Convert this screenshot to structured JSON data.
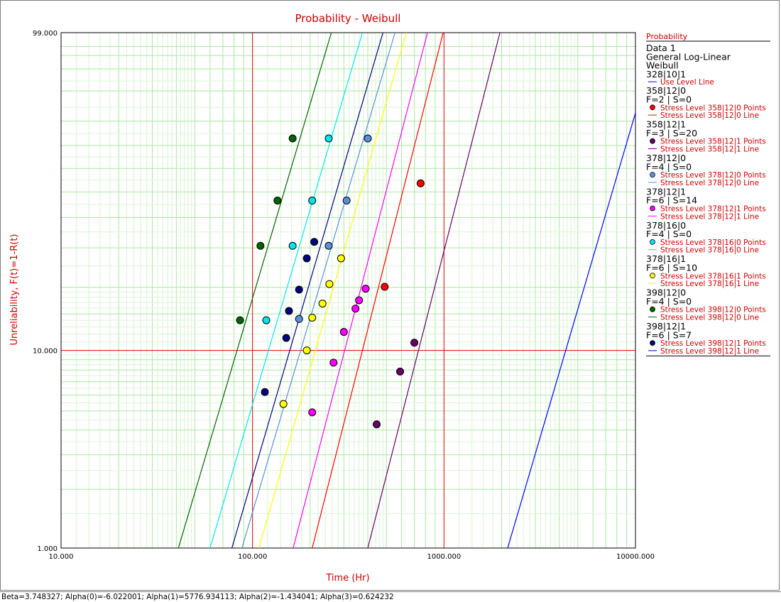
{
  "chart_data": {
    "type": "scatter",
    "title": "Probability - Weibull",
    "xlabel": "Time (Hr)",
    "ylabel": "Unreliability, F(t)=1-R(t)",
    "x_scale": "log",
    "y_scale": "weibull",
    "xlim": [
      10,
      10000
    ],
    "ylim": [
      1,
      99
    ],
    "x_ticks": [
      "10.000",
      "100.000",
      "1000.000",
      "10000.000"
    ],
    "y_ticks": [
      "1.000",
      "10.000",
      "99.000"
    ],
    "grid": true,
    "legend_position": "right",
    "reference_lines": {
      "x": 100,
      "y": 10
    },
    "legend": {
      "title": "Probability",
      "header": [
        "Data 1",
        "General Log-Linear",
        "Weibull",
        "328|10|1"
      ],
      "use_level_label": "Use Level Line",
      "groups": [
        {
          "name": "358|12|0",
          "counts": "F=2 | S=0",
          "points_label": "Stress Level 358|12|0 Points",
          "line_label": "Stress Level 358|12|0 Line",
          "color": "#ff0000"
        },
        {
          "name": "358|12|1",
          "counts": "F=3 | S=20",
          "points_label": "Stress Level 358|12|1 Points",
          "line_label": "Stress Level 358|12|1 Line",
          "color": "#660066"
        },
        {
          "name": "378|12|0",
          "counts": "F=4 | S=0",
          "points_label": "Stress Level 378|12|0 Points",
          "line_label": "Stress Level 378|12|0 Line",
          "color": "#5b8fd9"
        },
        {
          "name": "378|12|1",
          "counts": "F=6 | S=14",
          "points_label": "Stress Level 378|12|1 Points",
          "line_label": "Stress Level 378|12|1 Line",
          "color": "#ff00ff"
        },
        {
          "name": "378|16|0",
          "counts": "F=4 | S=0",
          "points_label": "Stress Level 378|16|0 Points",
          "line_label": "Stress Level 378|16|0 Line",
          "color": "#00e5ee"
        },
        {
          "name": "378|16|1",
          "counts": "F=6 | S=10",
          "points_label": "Stress Level 378|16|1 Points",
          "line_label": "Stress Level 378|16|1 Line",
          "color": "#ffff00"
        },
        {
          "name": "398|12|0",
          "counts": "F=4 | S=0",
          "points_label": "Stress Level 398|12|0 Points",
          "line_label": "Stress Level 398|12|0 Line",
          "color": "#006400"
        },
        {
          "name": "398|12|1",
          "counts": "F=6 | S=7",
          "points_label": "Stress Level 398|12|1 Points",
          "line_label": "Stress Level 398|12|1 Line",
          "color": "#000080"
        }
      ]
    },
    "use_level_line": {
      "color": "#0000ff",
      "x1": 2150,
      "x2": 10000,
      "y_at_x1": 1.0,
      "y_at_x2": 83.0
    },
    "series": [
      {
        "points": [
          [
            490,
            20.1
          ],
          [
            755,
            53.6
          ]
        ],
        "line": {
          "x1": 205,
          "x2": 990,
          "y_at_x1": 1.0,
          "y_at_x2": 99.0
        }
      },
      {
        "points": [
          [
            445,
            4.28
          ],
          [
            590,
            7.87
          ],
          [
            700,
            10.9
          ]
        ],
        "line": {
          "x1": 400,
          "x2": 1960,
          "y_at_x1": 1.0,
          "y_at_x2": 99.0
        }
      },
      {
        "points": [
          [
            175,
            14.2
          ],
          [
            250,
            30.6
          ],
          [
            310,
            46.5
          ],
          [
            400,
            73.0
          ]
        ],
        "line": {
          "x1": 88,
          "x2": 555,
          "y_at_x1": 1.0,
          "y_at_x2": 99.0
        }
      },
      {
        "points": [
          [
            205,
            4.92
          ],
          [
            265,
            8.7
          ],
          [
            300,
            12.3
          ],
          [
            345,
            15.9
          ],
          [
            360,
            17.4
          ],
          [
            390,
            19.7
          ]
        ],
        "line": {
          "x1": 163,
          "x2": 820,
          "y_at_x1": 1.0,
          "y_at_x2": 99.0
        }
      },
      {
        "points": [
          [
            118,
            14.0
          ],
          [
            162,
            30.6
          ],
          [
            205,
            46.5
          ],
          [
            250,
            73.0
          ]
        ],
        "line": {
          "x1": 60,
          "x2": 375,
          "y_at_x1": 1.0,
          "y_at_x2": 99.0
        }
      },
      {
        "points": [
          [
            145,
            5.42
          ],
          [
            192,
            10.0
          ],
          [
            205,
            14.4
          ],
          [
            232,
            16.8
          ],
          [
            252,
            20.7
          ],
          [
            290,
            27.0
          ]
        ],
        "line": {
          "x1": 108,
          "x2": 635,
          "y_at_x1": 1.0,
          "y_at_x2": 99.0
        }
      },
      {
        "points": [
          [
            86,
            14.0
          ],
          [
            110,
            30.6
          ],
          [
            135,
            46.5
          ],
          [
            162,
            73.0
          ]
        ],
        "line": {
          "x1": 41,
          "x2": 258,
          "y_at_x1": 1.0,
          "y_at_x2": 99.0
        }
      },
      {
        "points": [
          [
            116,
            6.22
          ],
          [
            150,
            11.5
          ],
          [
            155,
            15.5
          ],
          [
            175,
            19.5
          ],
          [
            192,
            27.0
          ],
          [
            210,
            31.8
          ]
        ],
        "line": {
          "x1": 78,
          "x2": 480,
          "y_at_x1": 1.0,
          "y_at_x2": 99.0
        }
      }
    ]
  },
  "status_text": "Beta=3.748327; Alpha(0)=-6.022001; Alpha(1)=5776.934113; Alpha(2)=-1.434041; Alpha(3)=0.624232"
}
